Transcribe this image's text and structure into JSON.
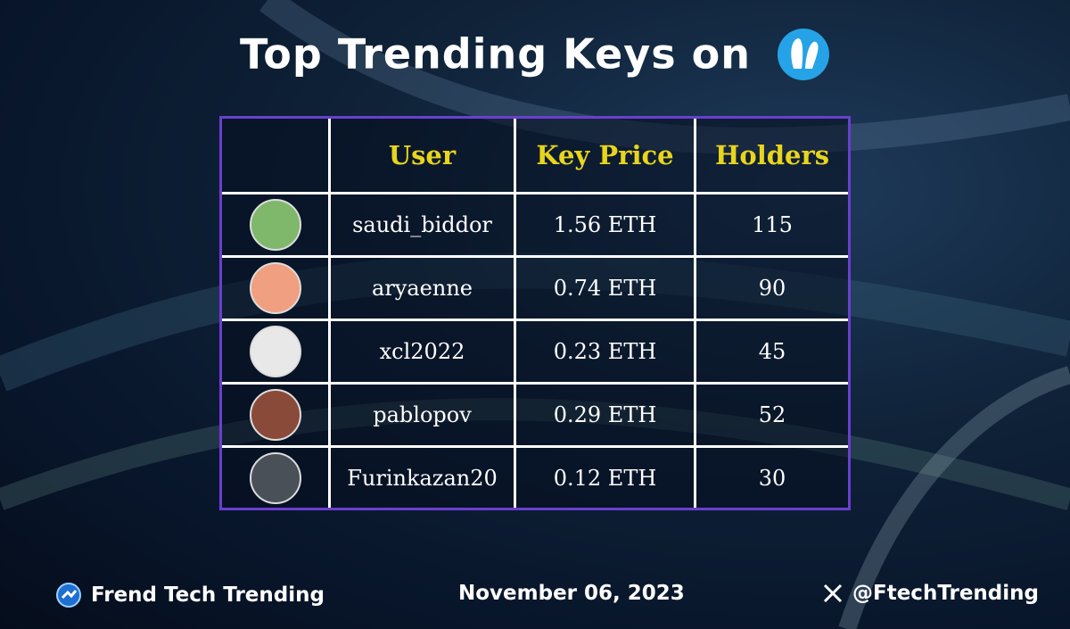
{
  "header": {
    "title": "Top Trending Keys on"
  },
  "table": {
    "columns": [
      "User",
      "Key Price",
      "Holders"
    ],
    "rows": [
      [
        "saudi_biddor",
        "1.56 ETH",
        "115"
      ],
      [
        "aryaenne",
        "0.74 ETH",
        "90"
      ],
      [
        "xcl2022",
        "0.23 ETH",
        "45"
      ],
      [
        "pablopov",
        "0.29 ETH",
        "52"
      ],
      [
        "Furinkazan20",
        "0.12 ETH",
        "30"
      ]
    ]
  },
  "footer": {
    "brand": "Frend Tech Trending",
    "date": "November 06, 2023",
    "handle": "@FtechTrending"
  }
}
